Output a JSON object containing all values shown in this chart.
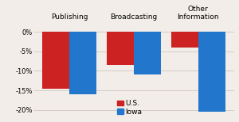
{
  "categories": [
    "Publishing",
    "Broadcasting",
    "Other\nInformation"
  ],
  "us_values": [
    -14.5,
    -8.5,
    -4.0
  ],
  "iowa_values": [
    -16.0,
    -11.0,
    -20.5
  ],
  "us_color": "#cc2222",
  "iowa_color": "#2277cc",
  "ylim": [
    -21.5,
    2.5
  ],
  "yticks": [
    0,
    -5,
    -10,
    -15,
    -20
  ],
  "ytick_labels": [
    "0%",
    "-5%",
    "-10%",
    "-15%",
    "-20%"
  ],
  "background_color": "#f2ede8",
  "legend_us": "U.S.",
  "legend_iowa": "Iowa",
  "bar_width": 0.42,
  "cat_fontsize": 6.5,
  "tick_fontsize": 6.0,
  "legend_fontsize": 6.5
}
